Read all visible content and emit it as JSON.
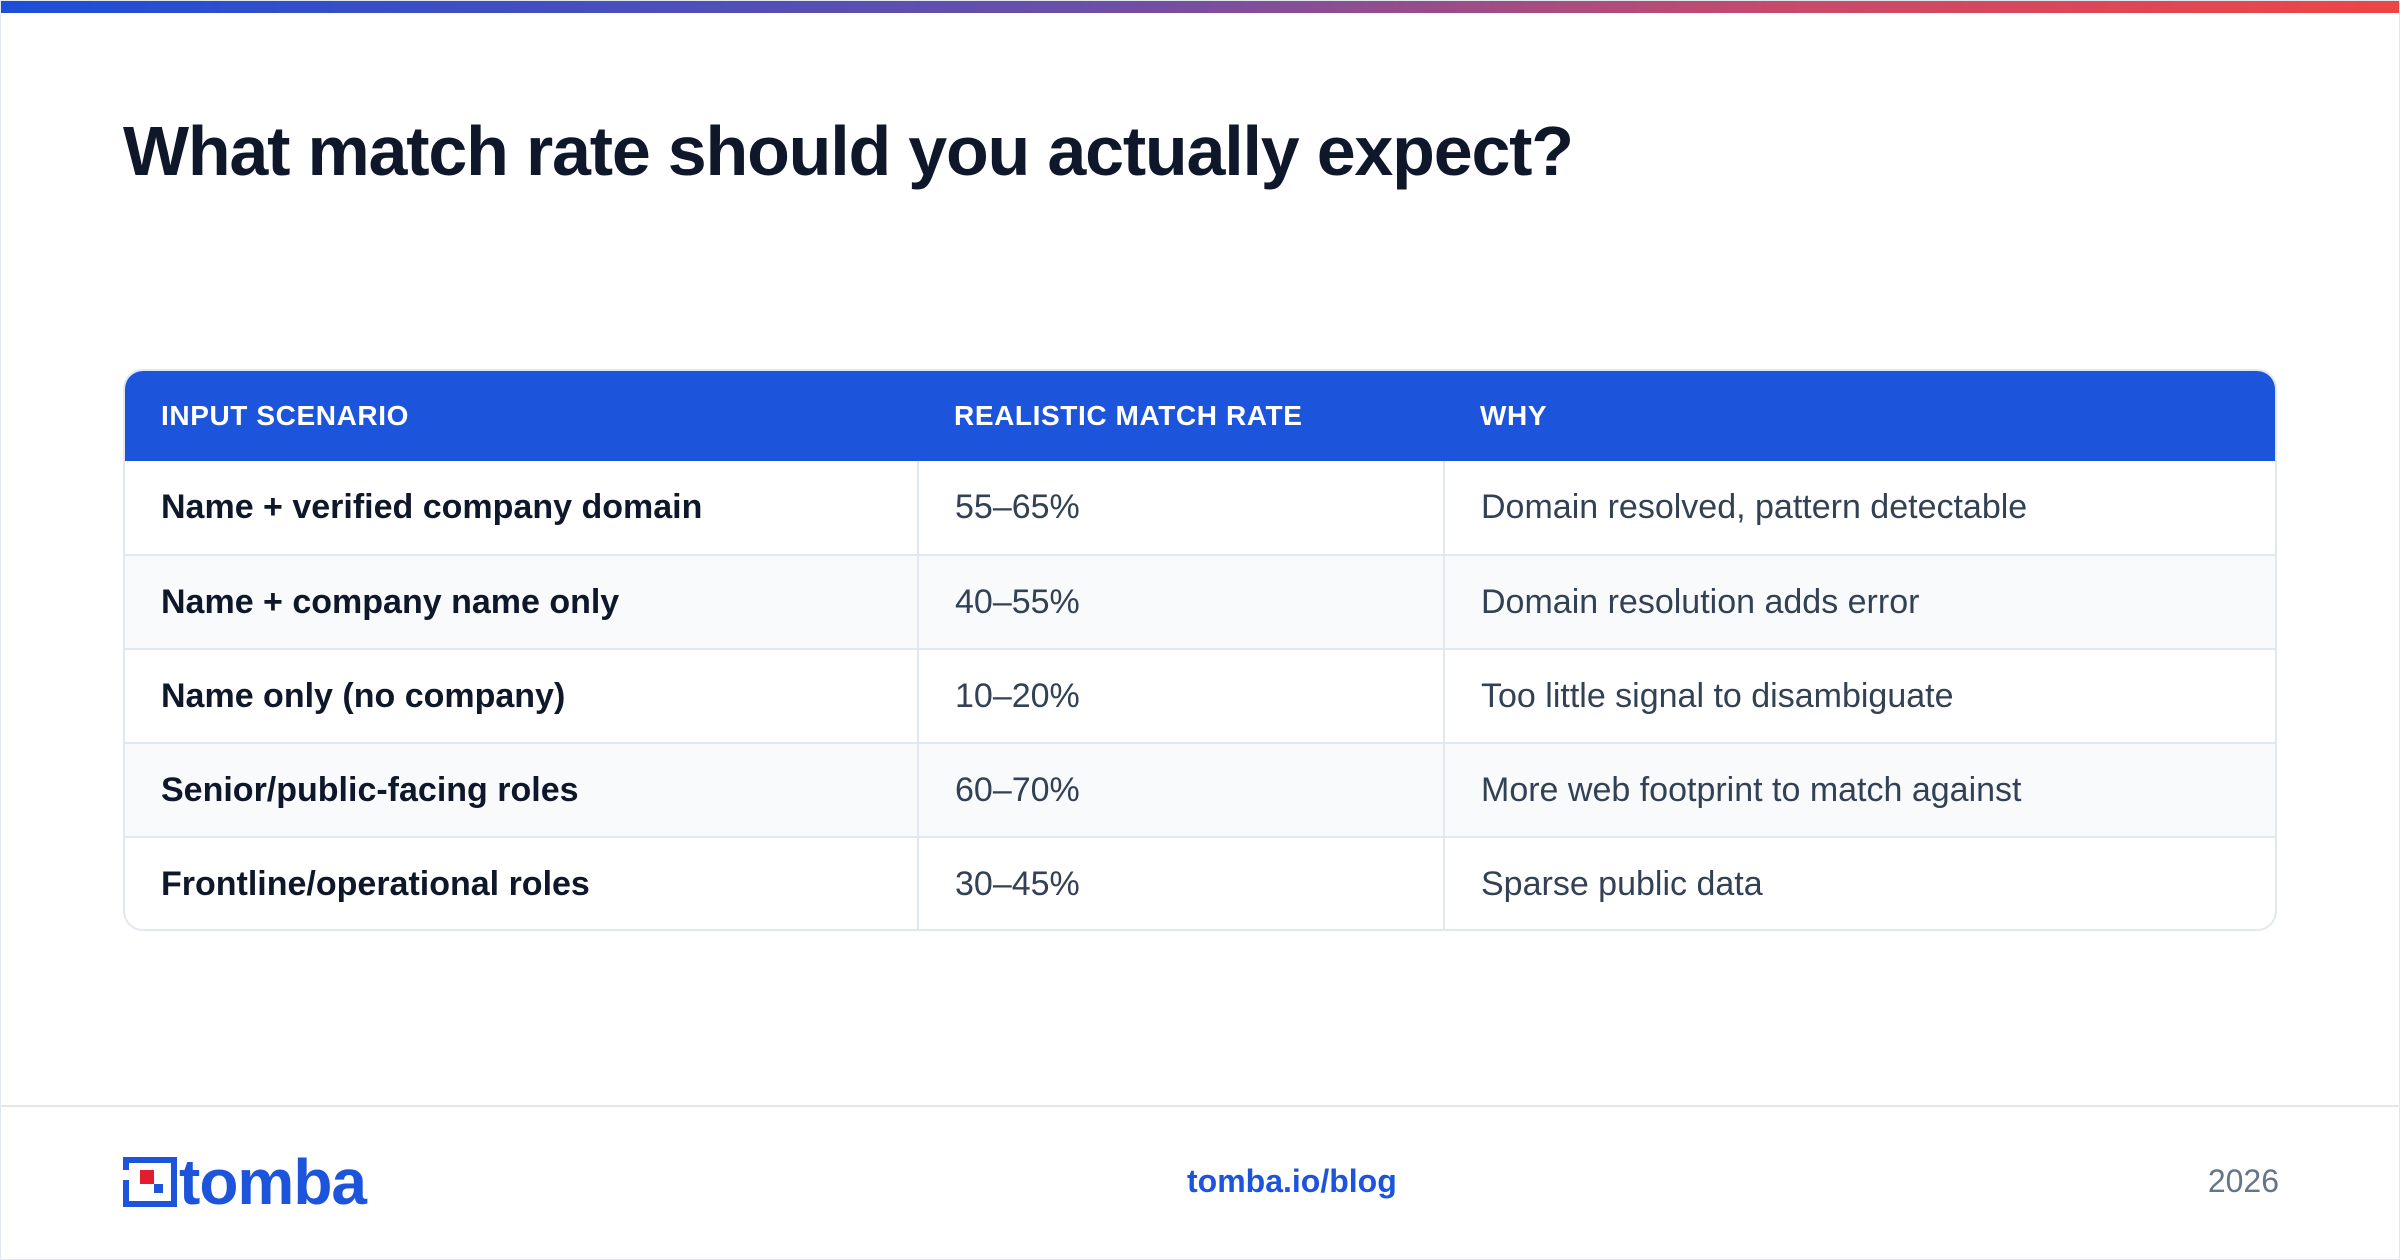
{
  "colors": {
    "accent": "#1c54db",
    "title": "#0f172a",
    "muted": "#64748b",
    "gradient_start": "#1d4ed8",
    "gradient_end": "#ef4444"
  },
  "title": "What match rate should you actually expect?",
  "table": {
    "headers": [
      "INPUT SCENARIO",
      "REALISTIC MATCH RATE",
      "WHY"
    ],
    "rows": [
      [
        "Name + verified company domain",
        "55–65%",
        "Domain resolved, pattern detectable"
      ],
      [
        "Name + company name only",
        "40–55%",
        "Domain resolution adds error"
      ],
      [
        "Name only (no company)",
        "10–20%",
        "Too little signal to disambiguate"
      ],
      [
        "Senior/public-facing roles",
        "60–70%",
        "More web footprint to match against"
      ],
      [
        "Frontline/operational roles",
        "30–45%",
        "Sparse public data"
      ]
    ]
  },
  "footer": {
    "logo_text": "tomba",
    "link": "tomba.io/blog",
    "year": "2026"
  }
}
